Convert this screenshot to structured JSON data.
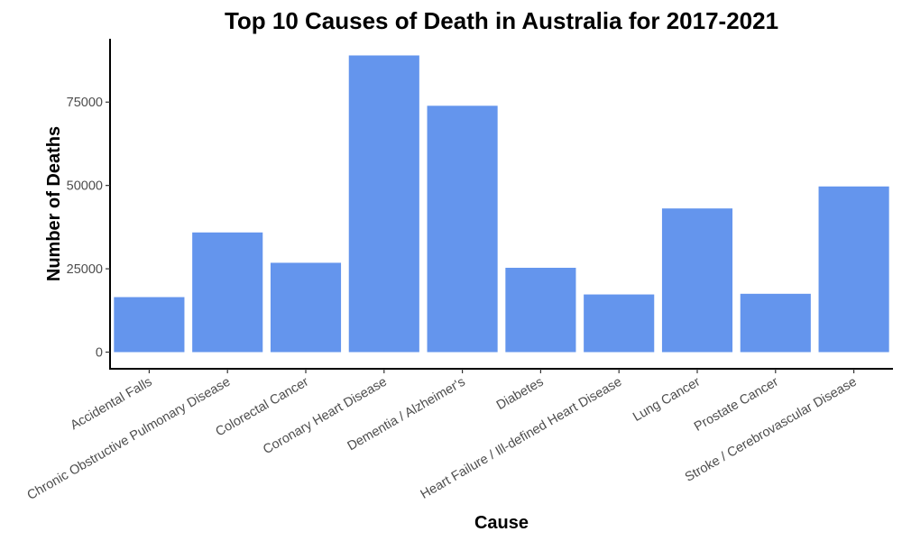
{
  "chart_data": {
    "type": "bar",
    "title": "Top 10 Causes of Death in Australia for 2017-2021",
    "xlabel": "Cause",
    "ylabel": "Number of Deaths",
    "categories": [
      "Accidental Falls",
      "Chronic Obstructive Pulmonary Disease",
      "Colorectal Cancer",
      "Coronary Heart Disease",
      "Dementia / Alzheimer's",
      "Diabetes",
      "Heart Failure / Ill-defined Heart Disease",
      "Lung Cancer",
      "Prostate Cancer",
      "Stroke / Cerebrovascular Disease"
    ],
    "values": [
      16500,
      35900,
      26800,
      89000,
      73900,
      25300,
      17300,
      43100,
      17500,
      49700
    ],
    "ylim": [
      -5000,
      94000
    ],
    "yticks": [
      0,
      25000,
      50000,
      75000
    ],
    "ytick_labels": [
      "0",
      "25000",
      "50000",
      "75000"
    ],
    "bar_color": "#6495ED",
    "grid": false,
    "legend": "none"
  }
}
